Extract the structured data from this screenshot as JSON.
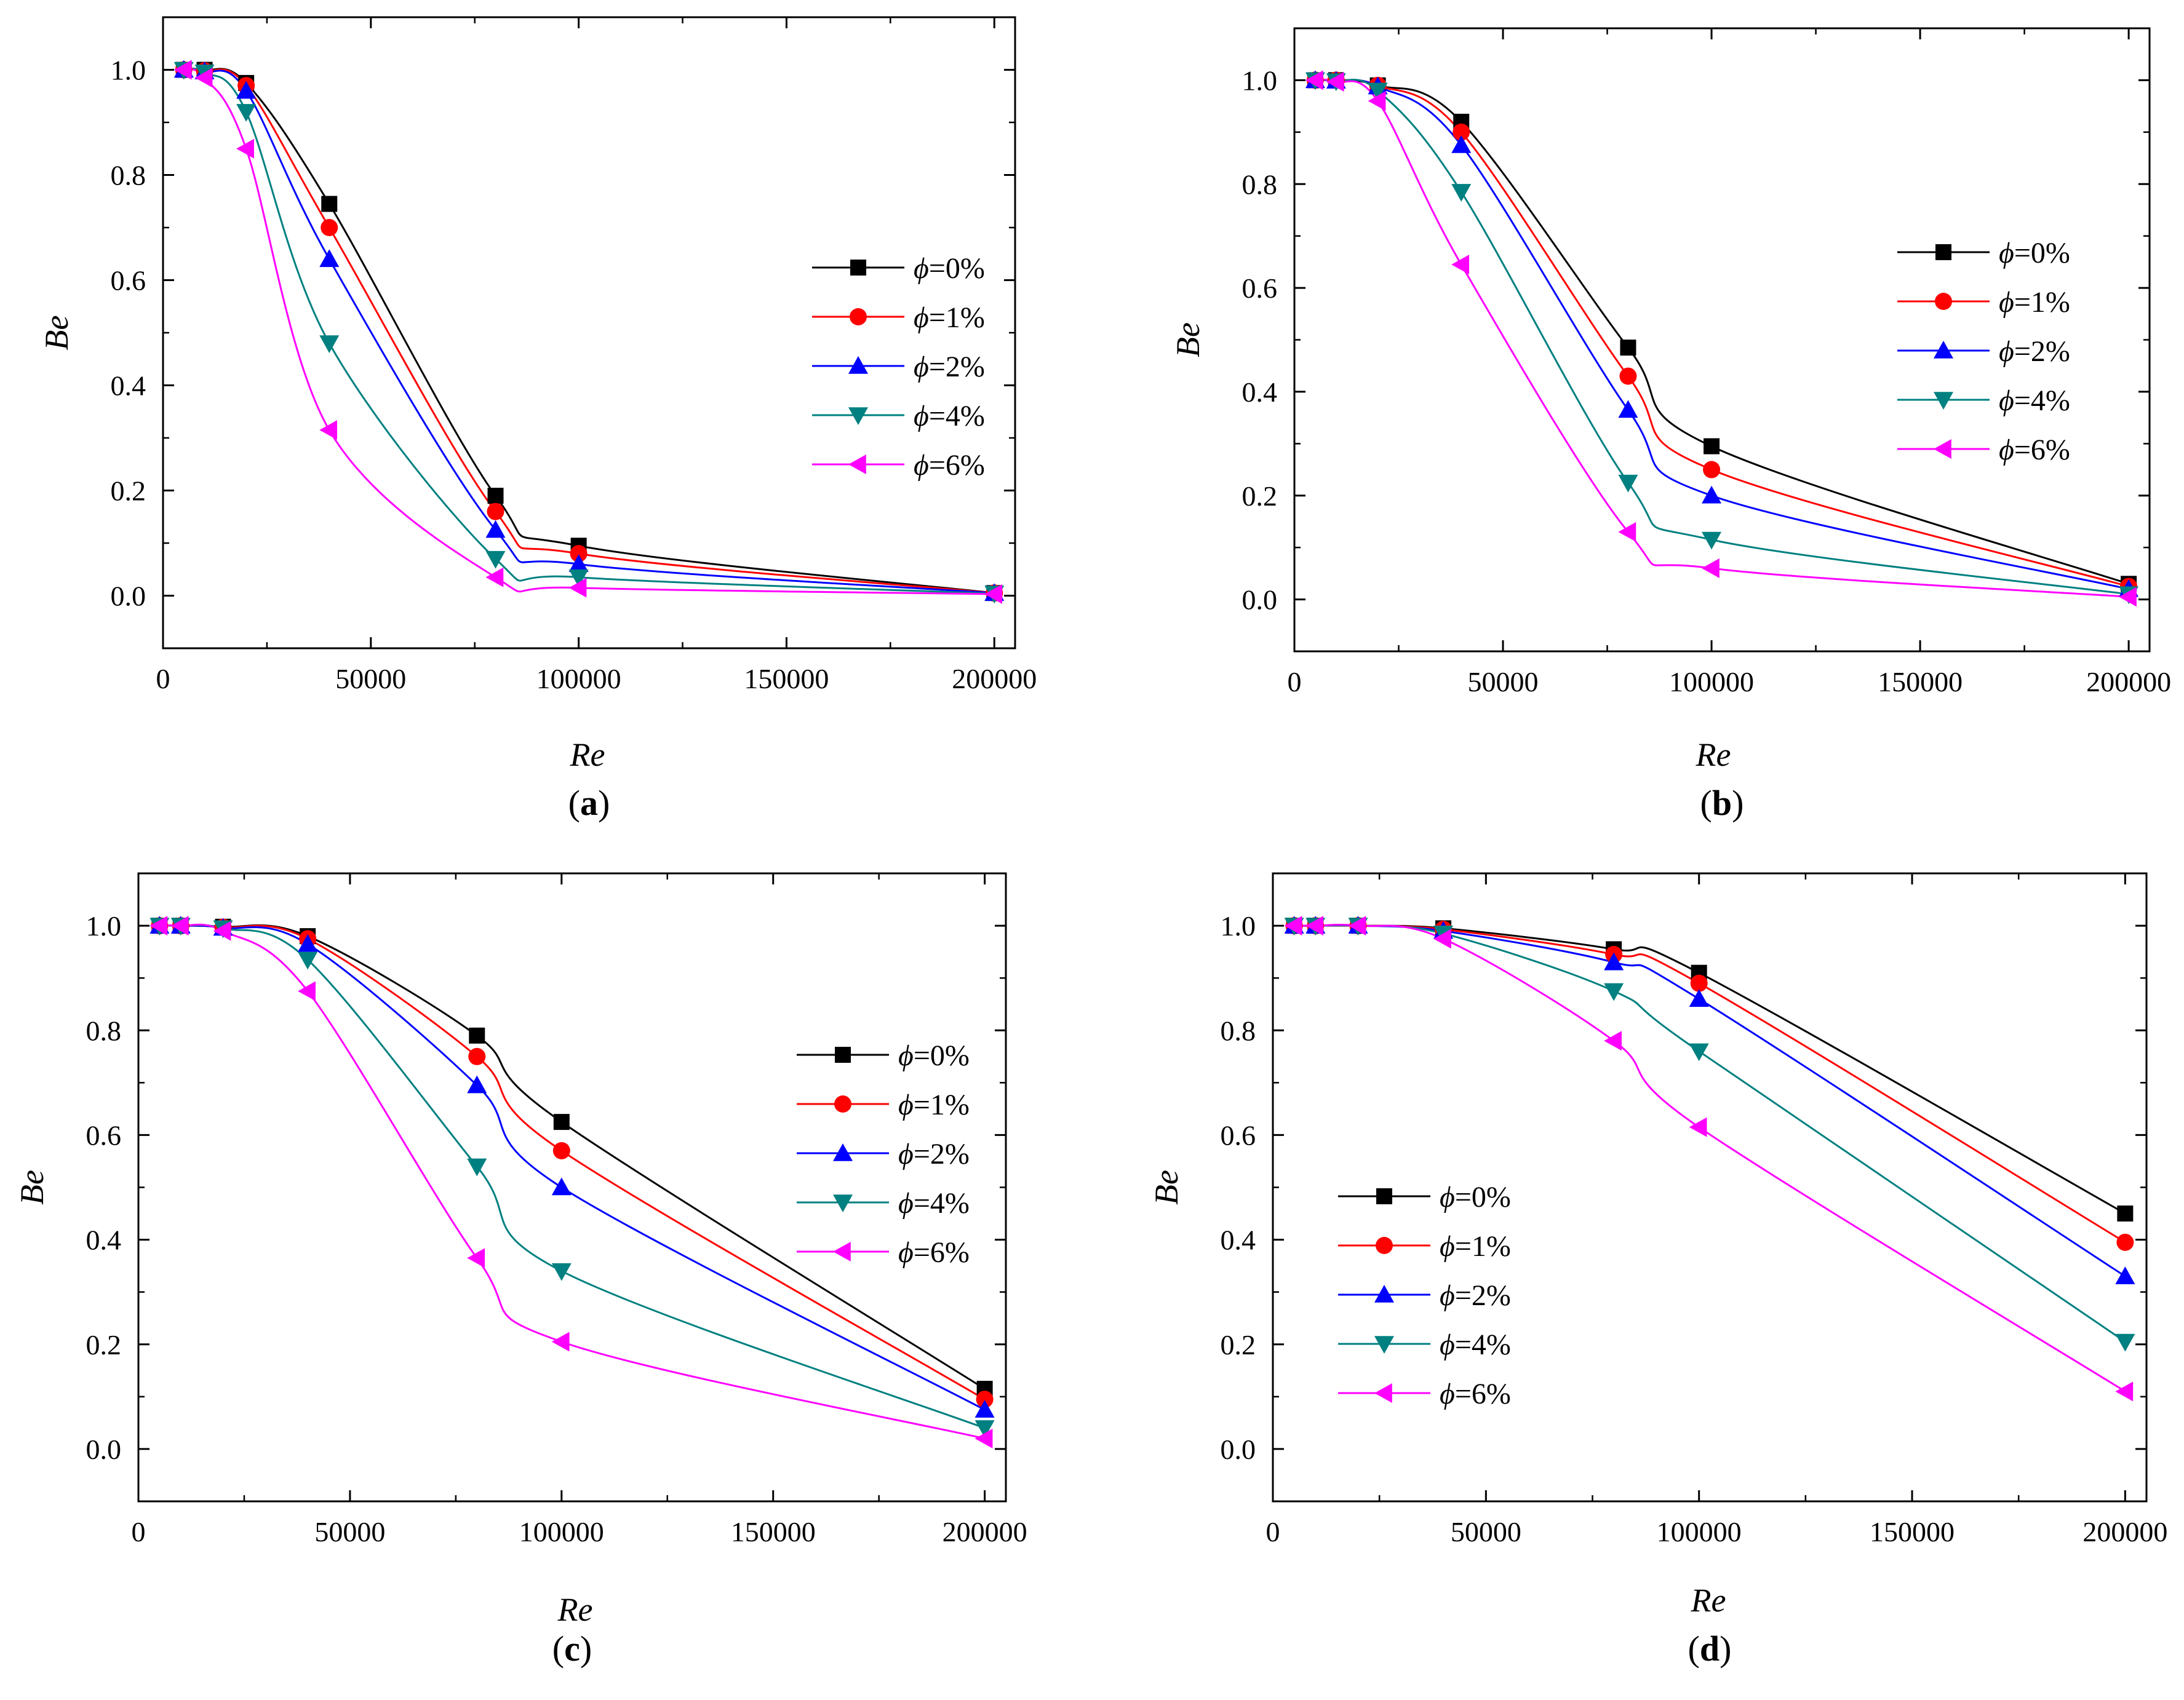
{
  "figure": {
    "series_names": [
      "ϕ=0%",
      "ϕ=1%",
      "ϕ=2%",
      "ϕ=4%",
      "ϕ=6%"
    ],
    "series_colors": [
      "#000000",
      "#ff0000",
      "#0000ff",
      "#008080",
      "#ff00ff"
    ],
    "series_markers": [
      "square",
      "circle",
      "triangle-up",
      "triangle-down",
      "triangle-left"
    ]
  },
  "chart_data": [
    {
      "type": "line",
      "panel": "(a)",
      "xlabel": "Re",
      "ylabel": "Be",
      "xlim": [
        0,
        205000
      ],
      "ylim": [
        -0.1,
        1.1
      ],
      "xticks": [
        "0",
        "50000",
        "100000",
        "150000",
        "200000"
      ],
      "yticks": [
        "0.0",
        "0.2",
        "0.4",
        "0.6",
        "0.8",
        "1.0"
      ],
      "legend_position": "right",
      "x": [
        5000,
        10000,
        20000,
        40000,
        80000,
        100000,
        200000
      ],
      "series": [
        {
          "name": "ϕ=0%",
          "values": [
            1.0,
            1.0,
            0.975,
            0.745,
            0.19,
            0.095,
            0.005
          ]
        },
        {
          "name": "ϕ=1%",
          "values": [
            1.0,
            0.998,
            0.97,
            0.7,
            0.16,
            0.08,
            0.005
          ]
        },
        {
          "name": "ϕ=2%",
          "values": [
            1.0,
            0.997,
            0.96,
            0.64,
            0.125,
            0.06,
            0.005
          ]
        },
        {
          "name": "ϕ=4%",
          "values": [
            1.0,
            0.995,
            0.92,
            0.48,
            0.07,
            0.035,
            0.004
          ]
        },
        {
          "name": "ϕ=6%",
          "values": [
            1.0,
            0.985,
            0.85,
            0.315,
            0.035,
            0.015,
            0.003
          ]
        }
      ]
    },
    {
      "type": "line",
      "panel": "(b)",
      "xlabel": "Re",
      "ylabel": "Be",
      "xlim": [
        0,
        205000
      ],
      "ylim": [
        -0.1,
        1.1
      ],
      "xticks": [
        "0",
        "50000",
        "100000",
        "150000",
        "200000"
      ],
      "yticks": [
        "0.0",
        "0.2",
        "0.4",
        "0.6",
        "0.8",
        "1.0"
      ],
      "legend_position": "right",
      "x": [
        5000,
        10000,
        20000,
        40000,
        80000,
        100000,
        200000
      ],
      "series": [
        {
          "name": "ϕ=0%",
          "values": [
            1.0,
            1.0,
            0.99,
            0.92,
            0.485,
            0.295,
            0.03
          ]
        },
        {
          "name": "ϕ=1%",
          "values": [
            1.0,
            1.0,
            0.99,
            0.9,
            0.43,
            0.25,
            0.025
          ]
        },
        {
          "name": "ϕ=2%",
          "values": [
            1.0,
            0.999,
            0.988,
            0.875,
            0.365,
            0.2,
            0.02
          ]
        },
        {
          "name": "ϕ=4%",
          "values": [
            1.0,
            0.998,
            0.98,
            0.785,
            0.225,
            0.115,
            0.01
          ]
        },
        {
          "name": "ϕ=6%",
          "values": [
            1.0,
            0.997,
            0.96,
            0.645,
            0.13,
            0.06,
            0.005
          ]
        }
      ]
    },
    {
      "type": "line",
      "panel": "(c)",
      "xlabel": "Re",
      "ylabel": "Be",
      "xlim": [
        0,
        205000
      ],
      "ylim": [
        -0.1,
        1.1
      ],
      "xticks": [
        "0",
        "50000",
        "100000",
        "150000",
        "200000"
      ],
      "yticks": [
        "0.0",
        "0.2",
        "0.4",
        "0.6",
        "0.8",
        "1.0"
      ],
      "legend_position": "right",
      "x": [
        5000,
        10000,
        20000,
        40000,
        80000,
        100000,
        200000
      ],
      "series": [
        {
          "name": "ϕ=0%",
          "values": [
            1.0,
            1.0,
            0.998,
            0.98,
            0.79,
            0.625,
            0.115
          ]
        },
        {
          "name": "ϕ=1%",
          "values": [
            1.0,
            1.0,
            0.997,
            0.975,
            0.75,
            0.57,
            0.095
          ]
        },
        {
          "name": "ϕ=2%",
          "values": [
            1.0,
            1.0,
            0.996,
            0.965,
            0.695,
            0.5,
            0.075
          ]
        },
        {
          "name": "ϕ=4%",
          "values": [
            1.0,
            1.0,
            0.995,
            0.935,
            0.54,
            0.34,
            0.04
          ]
        },
        {
          "name": "ϕ=6%",
          "values": [
            1.0,
            1.0,
            0.99,
            0.875,
            0.365,
            0.205,
            0.02
          ]
        }
      ]
    },
    {
      "type": "line",
      "panel": "(d)",
      "xlabel": "Re",
      "ylabel": "Be",
      "xlim": [
        0,
        205000
      ],
      "ylim": [
        -0.1,
        1.1
      ],
      "xticks": [
        "0",
        "50000",
        "100000",
        "150000",
        "200000"
      ],
      "yticks": [
        "0.0",
        "0.2",
        "0.4",
        "0.6",
        "0.8",
        "1.0"
      ],
      "legend_position": "left",
      "x": [
        5000,
        10000,
        20000,
        40000,
        80000,
        100000,
        200000
      ],
      "series": [
        {
          "name": "ϕ=0%",
          "values": [
            1.0,
            1.0,
            1.0,
            0.995,
            0.955,
            0.91,
            0.45
          ]
        },
        {
          "name": "ϕ=1%",
          "values": [
            1.0,
            1.0,
            1.0,
            0.993,
            0.945,
            0.89,
            0.395
          ]
        },
        {
          "name": "ϕ=2%",
          "values": [
            1.0,
            1.0,
            1.0,
            0.99,
            0.93,
            0.86,
            0.33
          ]
        },
        {
          "name": "ϕ=4%",
          "values": [
            1.0,
            1.0,
            1.0,
            0.985,
            0.875,
            0.76,
            0.205
          ]
        },
        {
          "name": "ϕ=6%",
          "values": [
            1.0,
            1.0,
            1.0,
            0.975,
            0.78,
            0.615,
            0.11
          ]
        }
      ]
    }
  ]
}
